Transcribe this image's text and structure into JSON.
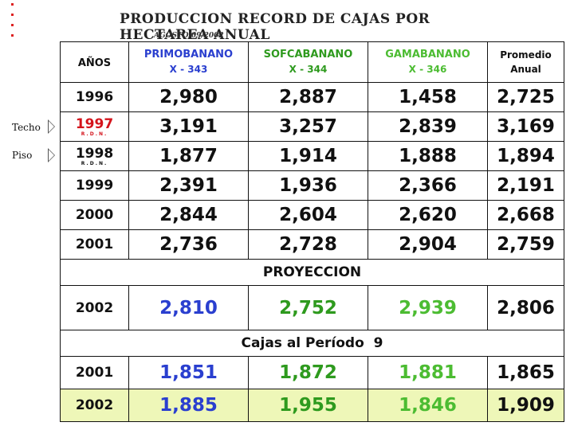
{
  "title": "PRODUCCION RECORD DE CAJAS POR HECTAREA ANUAL",
  "date": "AGOSTO/09/2002",
  "side_labels": {
    "techo": "Techo",
    "piso": "Piso"
  },
  "header": {
    "years": "AÑOS",
    "col1_name": "PRIMOBANANO",
    "col1_code": "X - 343",
    "col2_name": "SOFCABANANO",
    "col2_code": "X - 344",
    "col3_name": "GAMABANANO",
    "col3_code": "X - 346",
    "col4_name": "Promedio",
    "col4_sub": "Anual"
  },
  "rows": [
    {
      "year": "1996",
      "sub": "",
      "v1": "2,980",
      "v2": "2,887",
      "v3": "1,458",
      "v4": "2,725"
    },
    {
      "year": "1997",
      "sub": "R.D.N.",
      "v1": "3,191",
      "v2": "3,257",
      "v3": "2,839",
      "v4": "3,169"
    },
    {
      "year": "1998",
      "sub": "R.D.N.",
      "v1": "1,877",
      "v2": "1,914",
      "v3": "1,888",
      "v4": "1,894"
    },
    {
      "year": "1999",
      "sub": "",
      "v1": "2,391",
      "v2": "1,936",
      "v3": "2,366",
      "v4": "2,191"
    },
    {
      "year": "2000",
      "sub": "",
      "v1": "2,844",
      "v2": "2,604",
      "v3": "2,620",
      "v4": "2,668"
    },
    {
      "year": "2001",
      "sub": "",
      "v1": "2,736",
      "v2": "2,728",
      "v3": "2,904",
      "v4": "2,759"
    }
  ],
  "projection_label": "PROYECCION",
  "projection": {
    "year": "2002",
    "v1": "2,810",
    "v2": "2,752",
    "v3": "2,939",
    "v4": "2,806"
  },
  "period_label": "Cajas al Período  9",
  "period_rows": [
    {
      "year": "2001",
      "v1": "1,851",
      "v2": "1,872",
      "v3": "1,881",
      "v4": "1,865"
    },
    {
      "year": "2002",
      "v1": "1,885",
      "v2": "1,955",
      "v3": "1,846",
      "v4": "1,909"
    }
  ],
  "colors": {
    "blue": "#2a3fcf",
    "green": "#2e9a1e",
    "light_green": "#4cbc32",
    "red": "#d4141c",
    "highlight": "#eef7b8"
  }
}
